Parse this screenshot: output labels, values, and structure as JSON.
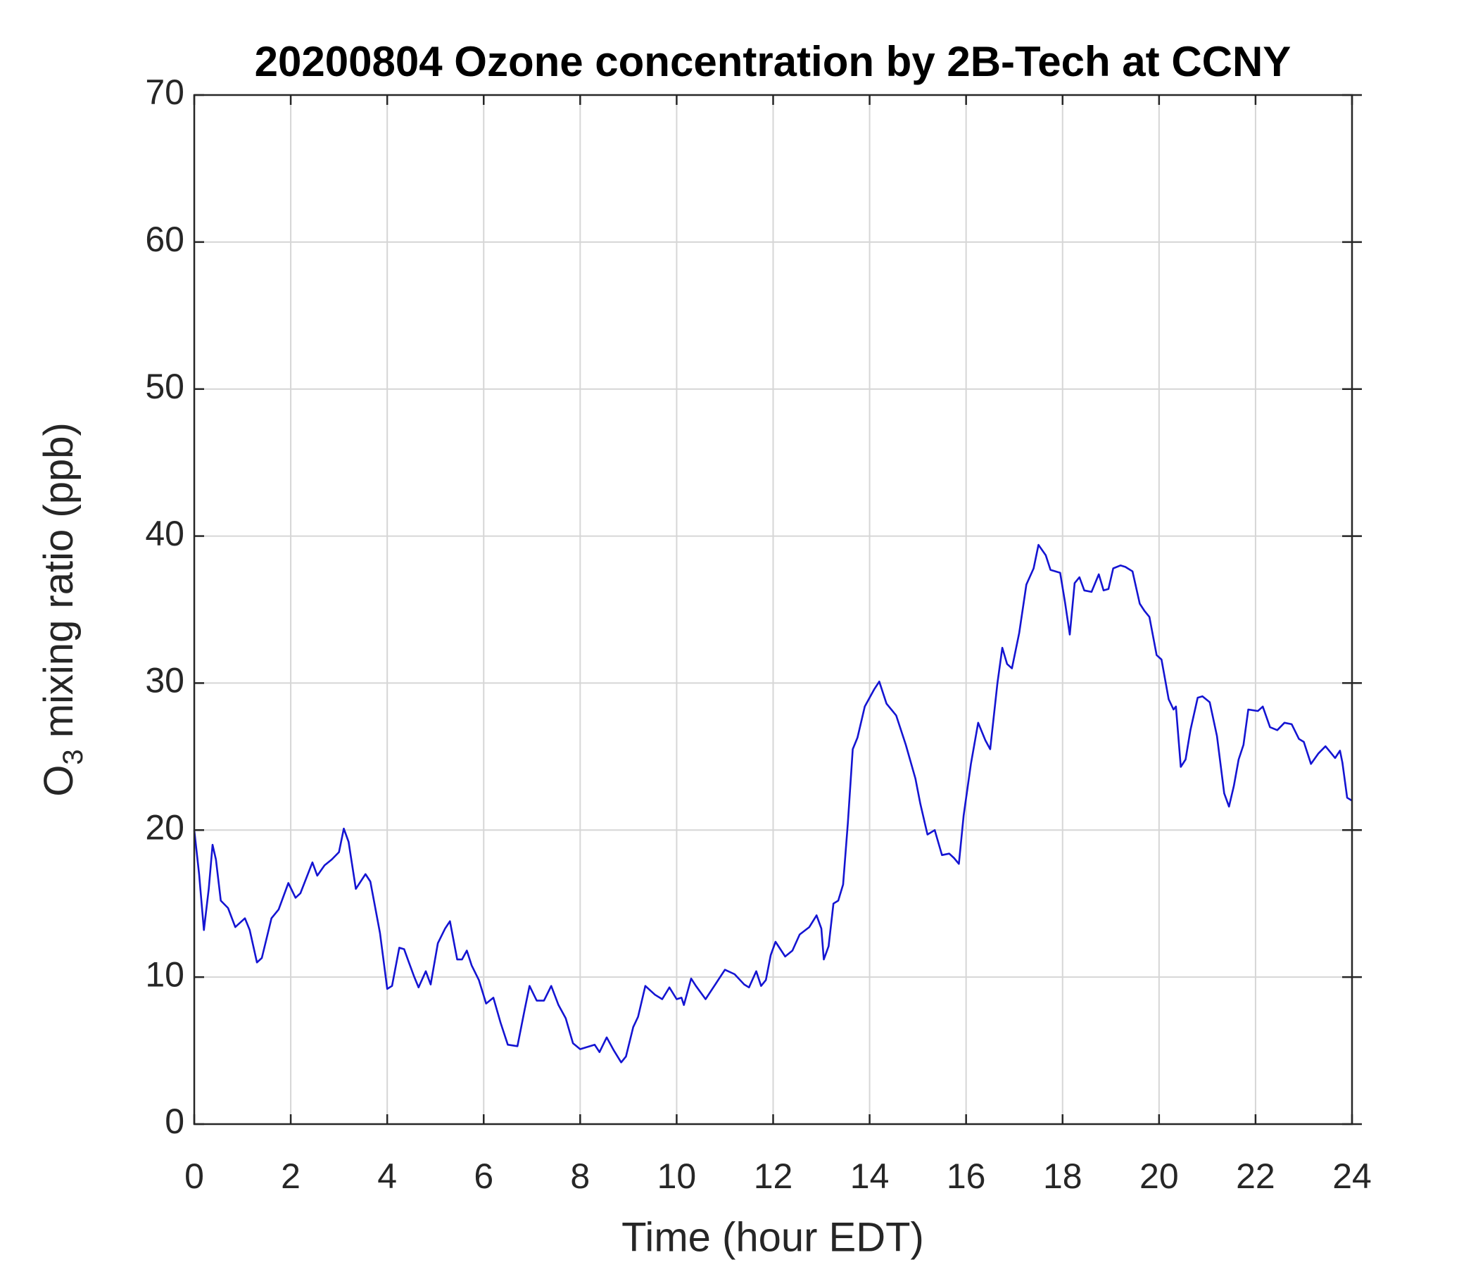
{
  "chart_data": {
    "type": "line",
    "title": "20200804 Ozone concentration by 2B-Tech at CCNY",
    "x_label": "Time (hour EDT)",
    "y_label": {
      "main": "O",
      "sub": "3",
      "rest": " mixing ratio (ppb)"
    },
    "xlim": [
      0,
      24
    ],
    "xticks": [
      0,
      2,
      4,
      6,
      8,
      10,
      12,
      14,
      16,
      18,
      20,
      22,
      24
    ],
    "ylim": [
      0,
      70
    ],
    "yticks": [
      0,
      10,
      20,
      30,
      40,
      50,
      60,
      70
    ],
    "grid": true,
    "series": [
      {
        "name": "O3",
        "color": "#1414d2",
        "x": [
          0,
          0.1,
          0.2,
          0.3,
          0.38,
          0.45,
          0.55,
          0.7,
          0.85,
          1.05,
          1.15,
          1.3,
          1.4,
          1.6,
          1.75,
          1.95,
          2.1,
          2.2,
          2.45,
          2.55,
          2.7,
          2.85,
          3.0,
          3.1,
          3.2,
          3.35,
          3.55,
          3.65,
          3.85,
          4.0,
          4.1,
          4.25,
          4.35,
          4.45,
          4.55,
          4.65,
          4.8,
          4.9,
          5.05,
          5.2,
          5.3,
          5.45,
          5.55,
          5.65,
          5.75,
          5.9,
          6.05,
          6.2,
          6.35,
          6.5,
          6.7,
          6.85,
          6.95,
          7.1,
          7.25,
          7.4,
          7.55,
          7.7,
          7.85,
          8.0,
          8.3,
          8.4,
          8.55,
          8.7,
          8.85,
          8.95,
          9.1,
          9.2,
          9.35,
          9.55,
          9.7,
          9.85,
          10.0,
          10.1,
          10.15,
          10.3,
          10.4,
          10.6,
          10.8,
          11.0,
          11.2,
          11.4,
          11.5,
          11.65,
          11.75,
          11.85,
          11.95,
          12.05,
          12.25,
          12.4,
          12.55,
          12.75,
          12.9,
          13.0,
          13.05,
          13.15,
          13.25,
          13.35,
          13.45,
          13.55,
          13.65,
          13.75,
          13.9,
          14.1,
          14.2,
          14.35,
          14.55,
          14.75,
          14.95,
          15.05,
          15.2,
          15.35,
          15.5,
          15.65,
          15.75,
          15.85,
          15.95,
          16.1,
          16.25,
          16.4,
          16.5,
          16.65,
          16.75,
          16.85,
          16.95,
          17.1,
          17.25,
          17.4,
          17.5,
          17.65,
          17.75,
          17.95,
          18.05,
          18.15,
          18.25,
          18.35,
          18.45,
          18.6,
          18.75,
          18.85,
          18.95,
          19.05,
          19.2,
          19.3,
          19.45,
          19.6,
          19.7,
          19.8,
          19.95,
          20.05,
          20.2,
          20.3,
          20.35,
          20.45,
          20.55,
          20.65,
          20.8,
          20.9,
          21.05,
          21.2,
          21.35,
          21.45,
          21.55,
          21.65,
          21.75,
          21.85,
          22.05,
          22.15,
          22.3,
          22.45,
          22.6,
          22.75,
          22.9,
          23.0,
          23.15,
          23.3,
          23.45,
          23.55,
          23.65,
          23.75,
          23.8,
          23.9,
          24.0
        ],
        "values": [
          20,
          17,
          13.2,
          16,
          19,
          18,
          15.2,
          14.7,
          13.4,
          14,
          13.2,
          11,
          11.3,
          14,
          14.6,
          16.4,
          15.4,
          15.7,
          17.8,
          16.9,
          17.6,
          18,
          18.5,
          20.1,
          19.2,
          16,
          17,
          16.5,
          13,
          9.2,
          9.4,
          12,
          11.9,
          11,
          10.1,
          9.3,
          10.4,
          9.5,
          12.3,
          13.3,
          13.8,
          11.2,
          11.2,
          11.8,
          10.8,
          9.8,
          8.2,
          8.6,
          6.9,
          5.4,
          5.3,
          7.8,
          9.4,
          8.4,
          8.4,
          9.4,
          8.1,
          7.2,
          5.5,
          5.1,
          5.4,
          4.9,
          5.9,
          5.0,
          4.2,
          4.6,
          6.6,
          7.3,
          9.4,
          8.8,
          8.5,
          9.3,
          8.5,
          8.6,
          8.1,
          9.9,
          9.4,
          8.5,
          9.5,
          10.5,
          10.2,
          9.5,
          9.3,
          10.4,
          9.4,
          9.8,
          11.5,
          12.4,
          11.4,
          11.8,
          12.9,
          13.4,
          14.2,
          13.3,
          11.2,
          12.1,
          15,
          15.2,
          16.3,
          20.5,
          25.5,
          26.3,
          28.4,
          29.6,
          30.1,
          28.6,
          27.8,
          25.8,
          23.5,
          21.8,
          19.7,
          20,
          18.3,
          18.4,
          18.1,
          17.7,
          21,
          24.5,
          27.3,
          26.1,
          25.5,
          30,
          32.4,
          31.3,
          31,
          33.4,
          36.7,
          37.8,
          39.4,
          38.7,
          37.7,
          37.5,
          35.5,
          33.3,
          36.8,
          37.2,
          36.3,
          36.2,
          37.4,
          36.3,
          36.4,
          37.8,
          38,
          37.9,
          37.6,
          35.4,
          34.9,
          34.5,
          31.9,
          31.6,
          28.9,
          28.2,
          28.4,
          24.3,
          24.8,
          26.8,
          29,
          29.1,
          28.7,
          26.4,
          22.5,
          21.6,
          23,
          24.8,
          25.8,
          28.2,
          28.1,
          28.4,
          27,
          26.8,
          27.3,
          27.2,
          26.2,
          26,
          24.5,
          25.2,
          25.7,
          25.3,
          24.9,
          25.4,
          24.6,
          22.2,
          22
        ]
      }
    ]
  }
}
